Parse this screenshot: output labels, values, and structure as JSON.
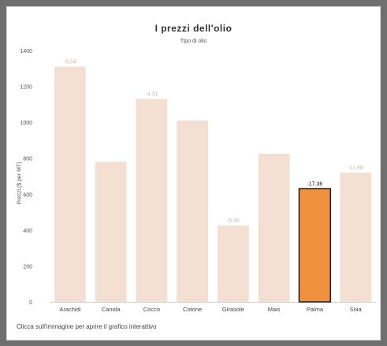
{
  "page": {
    "footer_text": "Clicca sull'immagine per aprire il grafico interattivo"
  },
  "chart_data": {
    "type": "bar",
    "title": "I prezzi dell'olio",
    "subtitle": "Tipo di olio",
    "xlabel": "",
    "ylabel": "Prezzi ($ per MT)",
    "ylim": [
      0,
      1400
    ],
    "yticks": [
      0,
      200,
      400,
      600,
      800,
      1000,
      1200,
      1400
    ],
    "grid": false,
    "categories": [
      "Arachidi",
      "Canola",
      "Cocco",
      "Cotone",
      "Girasole",
      "Mais",
      "Palma",
      "Soia"
    ],
    "values": [
      1310,
      780,
      1130,
      1010,
      425,
      825,
      630,
      720
    ],
    "data_labels": [
      "-5.54",
      "",
      "-4.31",
      "",
      "-5.46",
      "",
      "-17.36",
      "-11.88"
    ],
    "highlighted": "Palma",
    "colors": {
      "bar": "#f4e0d2",
      "highlight": "#f0913e",
      "highlight_border": "#1a1a1a",
      "label": "#c9b8ad",
      "highlight_label": "#111111"
    }
  }
}
